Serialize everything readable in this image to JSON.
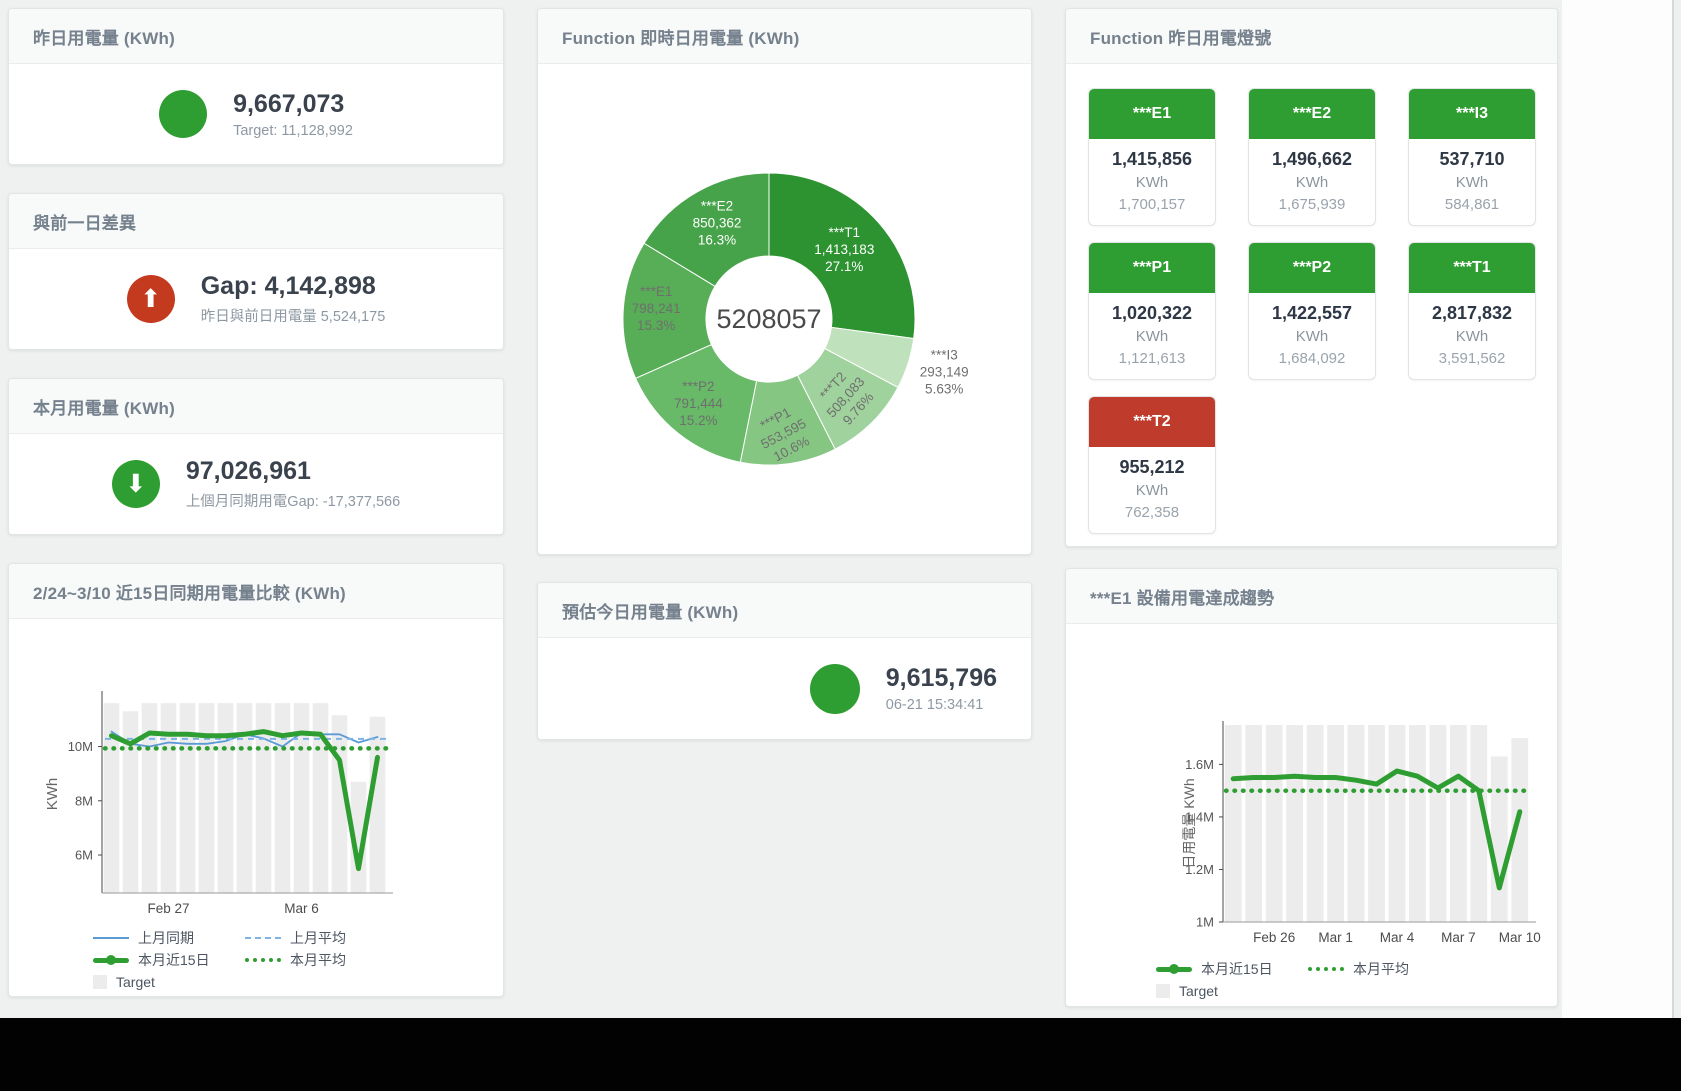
{
  "colors": {
    "green": "#2f9e32",
    "red_circle": "#c43a1f",
    "red_tile": "#bf3b2b",
    "blue_line": "#5b9bd5",
    "blue_dash": "#7fb2e5",
    "bar_gray": "#ececec"
  },
  "cards": {
    "yesterday": {
      "title": "昨日用電量 (KWh)",
      "value": "9,667,073",
      "sub": "Target: 11,128,992"
    },
    "gap": {
      "title": "與前一日差異",
      "value": "Gap: 4,142,898",
      "sub": "昨日與前日用電量 5,524,175",
      "arrow": "⬆"
    },
    "month": {
      "title": "本月用電量 (KWh)",
      "value": "97,026,961",
      "sub": "上個月同期用電Gap: -17,377,566",
      "arrow": "⬇"
    },
    "estimate": {
      "title": "預估今日用電量 (KWh)",
      "value": "9,615,796",
      "sub": "06-21 15:34:41"
    },
    "compare": {
      "title": "2/24~3/10 近15日同期用電量比較 (KWh)"
    },
    "donut": {
      "title": "Function 即時日用電量 (KWh)"
    },
    "lights": {
      "title": "Function 昨日用電燈號"
    },
    "trend": {
      "title": "***E1 設備用電達成趨勢"
    }
  },
  "lights": {
    "unit": "KWh",
    "tiles": [
      {
        "name": "***E1",
        "value": "1,415,856",
        "target": "1,700,157",
        "color": "#2f9e32"
      },
      {
        "name": "***E2",
        "value": "1,496,662",
        "target": "1,675,939",
        "color": "#2f9e32"
      },
      {
        "name": "***I3",
        "value": "537,710",
        "target": "584,861",
        "color": "#2f9e32"
      },
      {
        "name": "***P1",
        "value": "1,020,322",
        "target": "1,121,613",
        "color": "#2f9e32"
      },
      {
        "name": "***P2",
        "value": "1,422,557",
        "target": "1,684,092",
        "color": "#2f9e32"
      },
      {
        "name": "***T1",
        "value": "2,817,832",
        "target": "3,591,562",
        "color": "#2f9e32"
      },
      {
        "name": "***T2",
        "value": "955,212",
        "target": "762,358",
        "color": "#bf3b2b"
      }
    ]
  },
  "chart_data": [
    {
      "id": "function-donut",
      "type": "pie",
      "title": "Function 即時日用電量 (KWh)",
      "center_total": "5208057",
      "slices": [
        {
          "label": "***T1",
          "value": 1413183,
          "value_label": "1,413,183",
          "pct": "27.1%",
          "color": "#2d9331",
          "text_color": "#ffffff"
        },
        {
          "label": "***I3",
          "value": 293149,
          "value_label": "293,149",
          "pct": "5.63%",
          "color": "#bfe2bc",
          "text_color": "#6f6f6f",
          "label_outside": true
        },
        {
          "label": "***T2",
          "value": 508083,
          "value_label": "508,083",
          "pct": "9.76%",
          "color": "#9fd29c",
          "text_color": "#6f6f6f",
          "rotate": -48
        },
        {
          "label": "***P1",
          "value": 553595,
          "value_label": "553,595",
          "pct": "10.6%",
          "color": "#86c683",
          "text_color": "#6f6f6f",
          "rotate": -28
        },
        {
          "label": "***P2",
          "value": 791444,
          "value_label": "791,444",
          "pct": "15.2%",
          "color": "#68b968",
          "text_color": "#6f6f6f"
        },
        {
          "label": "***E1",
          "value": 798241,
          "value_label": "798,241",
          "pct": "15.3%",
          "color": "#58ad57",
          "text_color": "#6f6f6f"
        },
        {
          "label": "***E2",
          "value": 850362,
          "value_label": "850,362",
          "pct": "16.3%",
          "color": "#46a349",
          "text_color": "#ffffff"
        }
      ]
    },
    {
      "id": "compare-line",
      "type": "line",
      "title": "2/24~3/10 近15日同期用電量比較 (KWh)",
      "ylabel": "KWh",
      "ylim": [
        4.6,
        11.9
      ],
      "unit": "M KWh",
      "yticks": [
        {
          "v": 6,
          "label": "6M"
        },
        {
          "v": 8,
          "label": "8M"
        },
        {
          "v": 10,
          "label": "10M"
        }
      ],
      "xticks": [
        {
          "i": 3,
          "label": "Feb 27"
        },
        {
          "i": 10,
          "label": "Mar 6"
        }
      ],
      "bars": {
        "name": "Target",
        "color": "#ececec",
        "values": [
          11.6,
          11.3,
          11.6,
          11.6,
          11.6,
          11.6,
          11.6,
          11.6,
          11.6,
          11.6,
          11.6,
          11.6,
          11.15,
          8.7,
          11.1
        ]
      },
      "series": [
        {
          "name": "上月同期",
          "style": "solid",
          "width": 1.8,
          "color": "#5b9bd5",
          "values": [
            10.55,
            10.1,
            10.0,
            10.15,
            10.1,
            10.1,
            10.2,
            10.45,
            10.3,
            10.0,
            10.5,
            10.45,
            10.45,
            10.15,
            10.35
          ]
        },
        {
          "name": "上月平均",
          "style": "dashed",
          "width": 2,
          "color": "#7fb2e5",
          "const": 10.28
        },
        {
          "name": "本月平均",
          "style": "dotted",
          "width": 4.5,
          "color": "#2f9e32",
          "const": 9.93
        },
        {
          "name": "本月近15日",
          "style": "solid",
          "width": 5,
          "color": "#2f9e32",
          "values": [
            10.4,
            10.1,
            10.5,
            10.45,
            10.45,
            10.4,
            10.4,
            10.45,
            10.55,
            10.4,
            10.5,
            10.45,
            9.5,
            5.5,
            9.6
          ]
        }
      ],
      "legend": [
        [
          {
            "name": "上月同期",
            "swatch": "line-blue"
          },
          {
            "name": "上月平均",
            "swatch": "dash-blue"
          }
        ],
        [
          {
            "name": "本月近15日",
            "swatch": "thick-green"
          },
          {
            "name": "本月平均",
            "swatch": "dot-green"
          }
        ],
        [
          {
            "name": "Target",
            "swatch": "square-gray"
          }
        ]
      ]
    },
    {
      "id": "trend-line",
      "type": "line",
      "title": "***E1 設備用電達成趨勢",
      "ylabel": "日用電量 KWh",
      "ylim": [
        1.0,
        1.75
      ],
      "unit": "M KWh",
      "yticks": [
        {
          "v": 1,
          "label": "1M"
        },
        {
          "v": 1.2,
          "label": "1.2M"
        },
        {
          "v": 1.4,
          "label": "1.4M"
        },
        {
          "v": 1.6,
          "label": "1.6M"
        }
      ],
      "xticks": [
        {
          "i": 2,
          "label": "Feb 26"
        },
        {
          "i": 5,
          "label": "Mar 1"
        },
        {
          "i": 8,
          "label": "Mar 4"
        },
        {
          "i": 11,
          "label": "Mar 7"
        },
        {
          "i": 14,
          "label": "Mar 10"
        }
      ],
      "bars": {
        "name": "Target",
        "color": "#ececec",
        "values": [
          1.75,
          1.75,
          1.75,
          1.75,
          1.75,
          1.75,
          1.75,
          1.75,
          1.75,
          1.75,
          1.75,
          1.75,
          1.75,
          1.63,
          1.7
        ]
      },
      "series": [
        {
          "name": "本月平均",
          "style": "dotted",
          "width": 4.5,
          "color": "#2f9e32",
          "const": 1.5
        },
        {
          "name": "本月近15日",
          "style": "solid",
          "width": 5,
          "color": "#2f9e32",
          "values": [
            1.545,
            1.55,
            1.55,
            1.555,
            1.55,
            1.55,
            1.54,
            1.525,
            1.575,
            1.555,
            1.51,
            1.555,
            1.5,
            1.13,
            1.42
          ]
        }
      ],
      "legend": [
        [
          {
            "name": "本月近15日",
            "swatch": "thick-green"
          },
          {
            "name": "本月平均",
            "swatch": "dot-green"
          }
        ],
        [
          {
            "name": "Target",
            "swatch": "square-gray"
          }
        ]
      ]
    }
  ]
}
